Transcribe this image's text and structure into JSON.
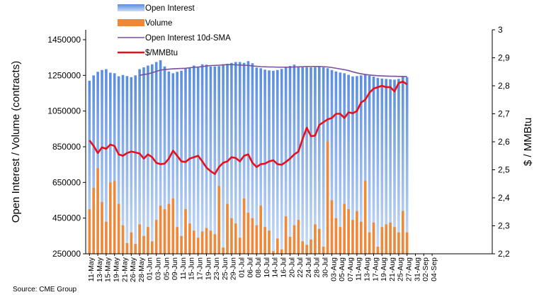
{
  "chart_data": {
    "type": "bar",
    "title": "",
    "source": "Source: CME Group",
    "ylabel_left": "Open Interest / Volume (contracts)",
    "ylabel_right": "$ / MMBtu",
    "ylim_left": [
      250000,
      1500000
    ],
    "ylim_right": [
      2.2,
      3.0
    ],
    "yticks_left": [
      "250000",
      "450000",
      "650000",
      "850000",
      "1050000",
      "1250000",
      "1450000"
    ],
    "yticks_right": [
      "2,2",
      "2,3",
      "2,4",
      "2,5",
      "2,6",
      "2,7",
      "2,8",
      "2,9",
      "3"
    ],
    "x_labels": [
      "11-May",
      "13-May",
      "15-May",
      "19-May",
      "21-May",
      "26-May",
      "28-May",
      "01-Jun",
      "03-Jun",
      "05-Jun",
      "09-Jun",
      "11-Jun",
      "15-Jun",
      "17-Jun",
      "19-Jun",
      "23-Jun",
      "25-Jun",
      "29-Jun",
      "01-Jul",
      "06-Jul",
      "08-Jul",
      "10-Jul",
      "14-Jul",
      "16-Jul",
      "20-Jul",
      "22-Jul",
      "24-Jul",
      "28-Jul",
      "30-Jul",
      "03-Aug",
      "05-Aug",
      "07-Aug",
      "11-Aug",
      "13-Aug",
      "17-Aug",
      "19-Aug",
      "21-Aug",
      "25-Aug",
      "27-Aug",
      "31-Aug",
      "02-Sep",
      "04-Sep"
    ],
    "legend": [
      {
        "name": "Open Interest",
        "swatch": "bar-blue"
      },
      {
        "name": "Volume",
        "swatch": "bar-orange"
      },
      {
        "name": "Open Interest 10d-SMA",
        "swatch": "line-purple"
      },
      {
        "name": "$/MMBtu",
        "swatch": "line-red"
      }
    ],
    "colors": {
      "open_interest": "#6f9ee4",
      "volume": "#f0883a",
      "sma": "#7a4f9e",
      "price": "#e8101a"
    },
    "series": [
      {
        "name": "Open Interest",
        "axis": "left",
        "values": [
          1220000,
          1250000,
          1270000,
          1280000,
          1285000,
          1265000,
          1262000,
          1245000,
          1252000,
          1246000,
          1240000,
          1250000,
          1285000,
          1295000,
          1305000,
          1312000,
          1325000,
          1335000,
          1300000,
          1272000,
          1262000,
          1270000,
          1276000,
          1290000,
          1292000,
          1305000,
          1296000,
          1312000,
          1310000,
          1300000,
          1300000,
          1302000,
          1312000,
          1315000,
          1320000,
          1325000,
          1325000,
          1320000,
          1330000,
          1318000,
          1294000,
          1290000,
          1282000,
          1278000,
          1276000,
          1280000,
          1286000,
          1296000,
          1303000,
          1310000,
          1300000,
          1296000,
          1296000,
          1295000,
          1296000,
          1297000,
          1295000,
          1290000,
          1280000,
          1272000,
          1266000,
          1262000,
          1253000,
          1244000,
          1246000,
          1250000,
          1256000,
          1248000,
          1243000,
          1236000,
          1232000,
          1230000,
          1228000,
          1226000,
          1230000,
          1246000,
          1240000
        ]
      },
      {
        "name": "Volume",
        "axis": "left",
        "values": [
          500000,
          620000,
          730000,
          540000,
          430000,
          650000,
          660000,
          530000,
          410000,
          310000,
          370000,
          305000,
          415000,
          350000,
          400000,
          320000,
          440000,
          520000,
          500000,
          530000,
          560000,
          400000,
          350000,
          500000,
          420000,
          380000,
          340000,
          375000,
          395000,
          380000,
          360000,
          630000,
          285000,
          530000,
          450000,
          420000,
          340000,
          560000,
          480000,
          450000,
          410000,
          520000,
          400000,
          380000,
          265000,
          335000,
          275000,
          460000,
          345000,
          410000,
          440000,
          320000,
          300000,
          330000,
          415000,
          390000,
          290000,
          880000,
          550000,
          450000,
          400000,
          530000,
          500000,
          440000,
          490000,
          430000,
          660000,
          370000,
          425000,
          290000,
          400000,
          415000,
          425000,
          400000,
          370000,
          490000,
          370000
        ]
      },
      {
        "name": "Open Interest 10d-SMA",
        "axis": "left",
        "values": [
          null,
          null,
          null,
          null,
          null,
          null,
          null,
          null,
          null,
          null,
          null,
          null,
          1250000,
          1255000,
          1258000,
          1265000,
          1272000,
          1280000,
          1283000,
          1285000,
          1287000,
          1288000,
          1289000,
          1290000,
          1293000,
          1295000,
          1297000,
          1299000,
          1303000,
          1305000,
          1306000,
          1307000,
          1309000,
          1310000,
          1310000,
          1309000,
          1308000,
          1307000,
          1306000,
          1303000,
          1301000,
          1299000,
          1298000,
          1297000,
          1297000,
          1296000,
          1296000,
          1296000,
          1296000,
          1297000,
          1298000,
          1299000,
          1300000,
          1300000,
          1300000,
          1300000,
          1299000,
          1297000,
          1294000,
          1290000,
          1286000,
          1282000,
          1277000,
          1270000,
          1264000,
          1259000,
          1255000,
          1252000,
          1250000,
          1248000,
          1247000,
          1246000,
          1245000,
          1245000,
          1244000,
          1244000,
          1243000
        ]
      },
      {
        "name": "$/MMBtu",
        "axis": "right",
        "values": [
          2.605,
          2.585,
          2.56,
          2.58,
          2.575,
          2.59,
          2.585,
          2.555,
          2.55,
          2.56,
          2.565,
          2.562,
          2.558,
          2.54,
          2.555,
          2.545,
          2.525,
          2.52,
          2.522,
          2.54,
          2.568,
          2.55,
          2.53,
          2.528,
          2.54,
          2.545,
          2.55,
          2.53,
          2.508,
          2.495,
          2.485,
          2.51,
          2.525,
          2.53,
          2.545,
          2.542,
          2.53,
          2.55,
          2.555,
          2.525,
          2.51,
          2.52,
          2.522,
          2.53,
          2.534,
          2.52,
          2.518,
          2.528,
          2.54,
          2.555,
          2.565,
          2.61,
          2.65,
          2.62,
          2.622,
          2.66,
          2.67,
          2.68,
          2.685,
          2.7,
          2.7,
          2.685,
          2.705,
          2.702,
          2.71,
          2.74,
          2.75,
          2.775,
          2.79,
          2.795,
          2.8,
          2.795,
          2.795,
          2.78,
          2.81,
          2.815,
          2.805
        ]
      }
    ]
  }
}
